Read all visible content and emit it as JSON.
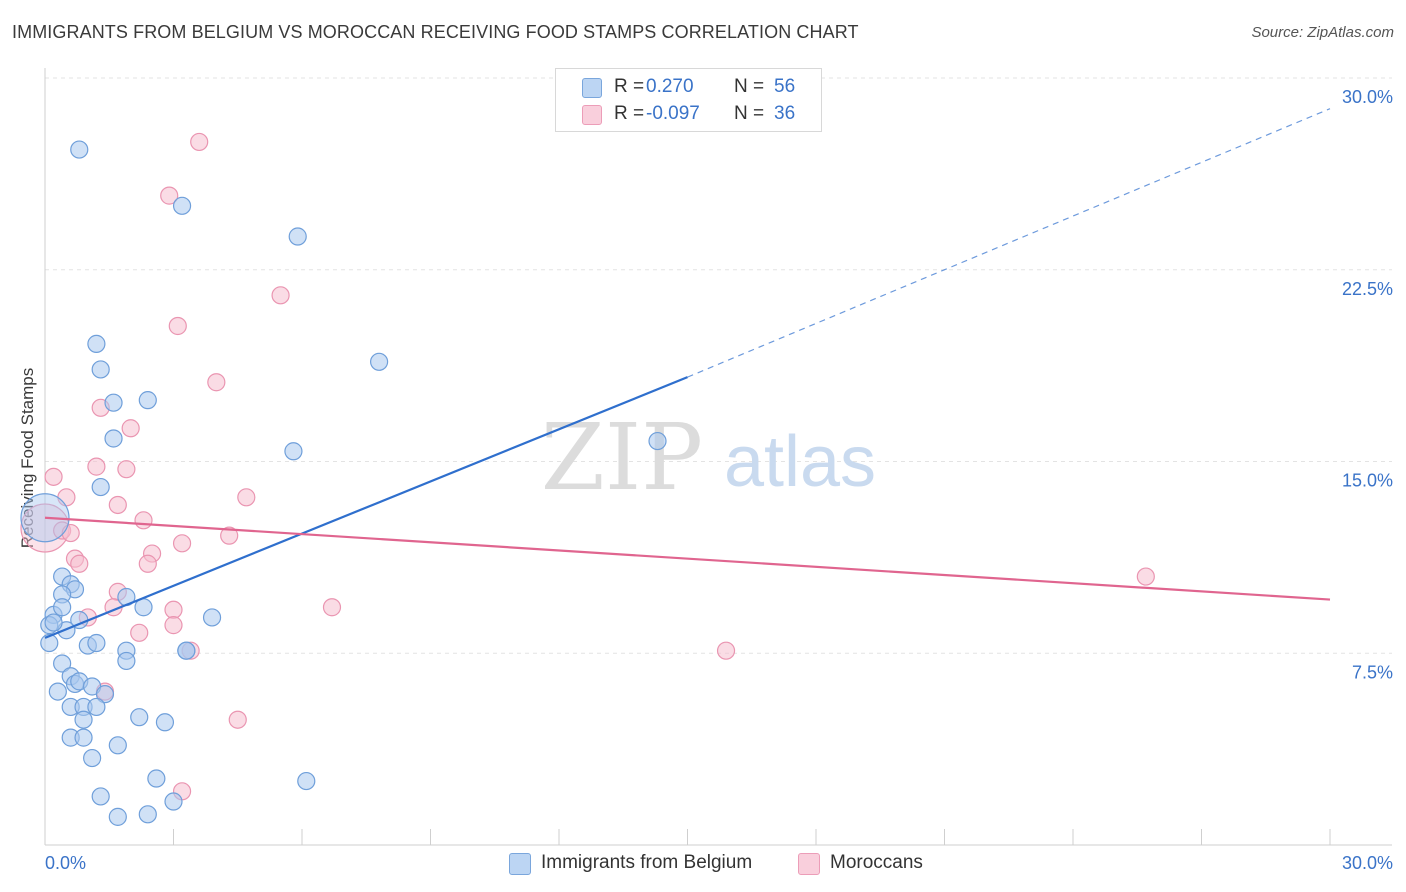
{
  "title": "IMMIGRANTS FROM BELGIUM VS MOROCCAN RECEIVING FOOD STAMPS CORRELATION CHART",
  "source": "Source: ZipAtlas.com",
  "watermark": {
    "zip": "ZIP",
    "atlas": "atlas"
  },
  "legend": {
    "r_label": "R =",
    "n_label": "N =",
    "series": [
      {
        "r": "0.270",
        "n": "56"
      },
      {
        "r": "-0.097",
        "n": "36"
      }
    ]
  },
  "bottom_legend": [
    "Immigrants from Belgium",
    "Moroccans"
  ],
  "colors": {
    "belgium_fill": "#a9c8ef",
    "belgium_stroke": "#6f9fda",
    "belgium_line": "#2f6fcd",
    "moroccan_fill": "#f6bfd0",
    "moroccan_stroke": "#ea95b1",
    "moroccan_line": "#e0658f",
    "tick_label": "#3a73c8",
    "grid": "#e3e3e3"
  },
  "chart_data": {
    "type": "scatter",
    "title": "IMMIGRANTS FROM BELGIUM VS MOROCCAN RECEIVING FOOD STAMPS CORRELATION CHART",
    "xlabel": "",
    "ylabel": "Receiving Food Stamps",
    "xlim": [
      0,
      30
    ],
    "ylim": [
      0,
      30
    ],
    "x_tick_labels": [
      "0.0%",
      "30.0%"
    ],
    "y_ticks": [
      7.5,
      15.0,
      22.5,
      30.0
    ],
    "y_tick_labels": [
      "7.5%",
      "15.0%",
      "22.5%",
      "30.0%"
    ],
    "grid": true,
    "series": [
      {
        "name": "Immigrants from Belgium",
        "color": "belgium",
        "trend": {
          "x0": 0,
          "y0": 8.1,
          "x1": 15,
          "y1": 18.3,
          "dashed_to_x": 30,
          "dashed_to_y": 28.8
        },
        "points": [
          [
            0.8,
            27.2
          ],
          [
            3.2,
            25.0
          ],
          [
            5.9,
            23.8
          ],
          [
            1.2,
            19.6
          ],
          [
            1.3,
            18.6
          ],
          [
            7.8,
            18.9
          ],
          [
            1.6,
            17.3
          ],
          [
            2.4,
            17.4
          ],
          [
            1.6,
            15.9
          ],
          [
            5.8,
            15.4
          ],
          [
            14.3,
            15.8
          ],
          [
            1.3,
            14.0
          ],
          [
            0.0,
            12.8
          ],
          [
            0.4,
            10.5
          ],
          [
            0.6,
            10.2
          ],
          [
            0.7,
            10.0
          ],
          [
            0.4,
            9.8
          ],
          [
            0.2,
            9.0
          ],
          [
            0.4,
            9.3
          ],
          [
            0.8,
            8.8
          ],
          [
            0.5,
            8.4
          ],
          [
            0.1,
            8.6
          ],
          [
            1.9,
            9.7
          ],
          [
            2.3,
            9.3
          ],
          [
            3.9,
            8.9
          ],
          [
            0.1,
            7.9
          ],
          [
            1.0,
            7.8
          ],
          [
            1.2,
            7.9
          ],
          [
            1.9,
            7.6
          ],
          [
            1.9,
            7.2
          ],
          [
            3.3,
            7.6
          ],
          [
            0.4,
            7.1
          ],
          [
            0.6,
            6.6
          ],
          [
            0.7,
            6.3
          ],
          [
            0.8,
            6.4
          ],
          [
            1.1,
            6.2
          ],
          [
            1.4,
            5.9
          ],
          [
            0.3,
            6.0
          ],
          [
            0.6,
            5.4
          ],
          [
            0.9,
            5.4
          ],
          [
            1.2,
            5.4
          ],
          [
            0.9,
            4.9
          ],
          [
            2.2,
            5.0
          ],
          [
            2.8,
            4.8
          ],
          [
            0.6,
            4.2
          ],
          [
            0.9,
            4.2
          ],
          [
            1.7,
            3.9
          ],
          [
            1.1,
            3.4
          ],
          [
            2.6,
            2.6
          ],
          [
            6.1,
            2.5
          ],
          [
            1.3,
            1.9
          ],
          [
            3.0,
            1.7
          ],
          [
            1.7,
            1.1
          ],
          [
            2.4,
            1.2
          ],
          [
            3.3,
            7.6
          ],
          [
            0.2,
            8.7
          ]
        ]
      },
      {
        "name": "Moroccans",
        "color": "moroccan",
        "trend": {
          "x0": 0,
          "y0": 12.8,
          "x1": 30,
          "y1": 9.6
        },
        "points": [
          [
            3.6,
            27.5
          ],
          [
            2.9,
            25.4
          ],
          [
            5.5,
            21.5
          ],
          [
            3.1,
            20.3
          ],
          [
            4.0,
            18.1
          ],
          [
            1.3,
            17.1
          ],
          [
            2.0,
            16.3
          ],
          [
            1.2,
            14.8
          ],
          [
            1.9,
            14.7
          ],
          [
            0.2,
            14.4
          ],
          [
            0.5,
            13.6
          ],
          [
            4.7,
            13.6
          ],
          [
            1.7,
            13.3
          ],
          [
            2.3,
            12.7
          ],
          [
            0.0,
            12.4
          ],
          [
            0.4,
            12.3
          ],
          [
            0.6,
            12.2
          ],
          [
            4.3,
            12.1
          ],
          [
            3.2,
            11.8
          ],
          [
            2.5,
            11.4
          ],
          [
            0.7,
            11.2
          ],
          [
            0.8,
            11.0
          ],
          [
            2.4,
            11.0
          ],
          [
            1.7,
            9.9
          ],
          [
            1.6,
            9.3
          ],
          [
            3.0,
            9.2
          ],
          [
            6.7,
            9.3
          ],
          [
            1.0,
            8.9
          ],
          [
            3.0,
            8.6
          ],
          [
            2.2,
            8.3
          ],
          [
            3.4,
            7.6
          ],
          [
            15.9,
            7.6
          ],
          [
            1.4,
            6.0
          ],
          [
            4.5,
            4.9
          ],
          [
            25.7,
            10.5
          ],
          [
            3.2,
            2.1
          ]
        ]
      }
    ]
  }
}
